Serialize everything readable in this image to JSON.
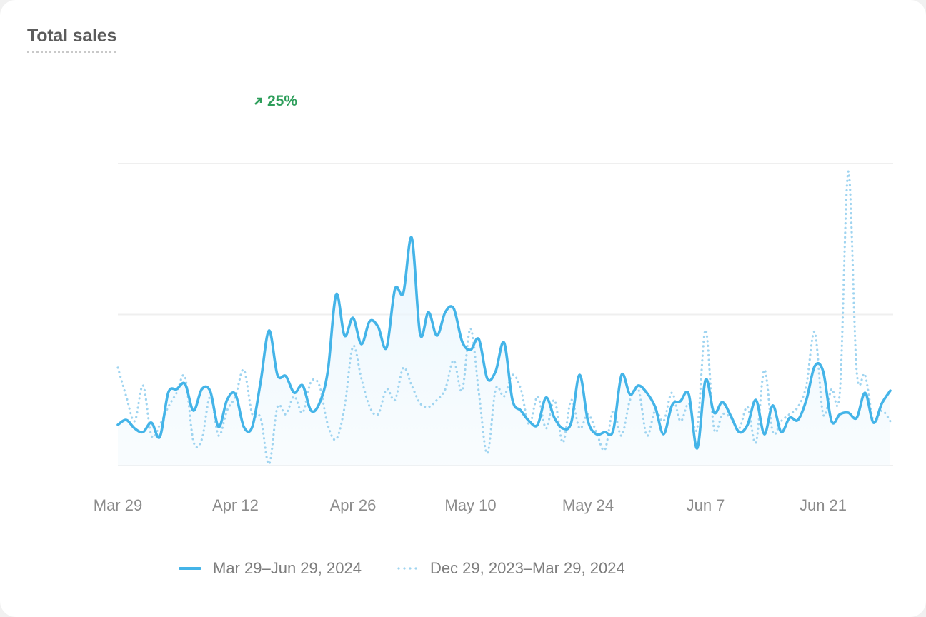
{
  "card": {
    "title": "Total sales",
    "change": {
      "icon": "arrow-up-right-icon",
      "value": "25%",
      "color": "#2e9e5b"
    }
  },
  "colors": {
    "current": "#44b4e8",
    "previous": "#9fd4f0",
    "fill": "#eaf6fd",
    "grid": "#efefef"
  },
  "chart_data": {
    "type": "line",
    "title": "Total sales",
    "xlabel": "",
    "ylabel": "",
    "ylim": [
      0,
      100
    ],
    "grid": true,
    "gridlines": [
      0,
      50,
      100
    ],
    "legend_position": "bottom",
    "start_date": "Mar 29",
    "x_ticks": [
      {
        "day": 0,
        "label": "Mar 29"
      },
      {
        "day": 14,
        "label": "Apr 12"
      },
      {
        "day": 28,
        "label": "Apr 26"
      },
      {
        "day": 42,
        "label": "May 10"
      },
      {
        "day": 56,
        "label": "May 24"
      },
      {
        "day": 70,
        "label": "Jun 7"
      },
      {
        "day": 84,
        "label": "Jun 21"
      }
    ],
    "series": [
      {
        "name": "Mar 29–Jun 29, 2024",
        "style": "solid",
        "values": [
          13.5,
          15.1,
          12.3,
          11.1,
          14.2,
          9.5,
          24.1,
          25.3,
          27.0,
          18.2,
          25.3,
          24.6,
          12.8,
          21.7,
          23.6,
          12.8,
          12.8,
          27.7,
          44.7,
          30.0,
          29.6,
          24.1,
          26.5,
          18.2,
          20.6,
          31.2,
          56.7,
          43.0,
          48.9,
          40.2,
          47.8,
          45.9,
          39.0,
          58.4,
          57.2,
          75.4,
          43.5,
          50.8,
          43.0,
          50.8,
          52.0,
          41.1,
          38.3,
          41.8,
          28.8,
          31.2,
          40.7,
          21.7,
          18.2,
          14.7,
          13.5,
          22.5,
          15.8,
          12.3,
          14.2,
          30.0,
          14.7,
          10.4,
          11.1,
          11.6,
          30.0,
          23.6,
          26.5,
          24.1,
          19.4,
          10.4,
          19.9,
          21.3,
          23.6,
          5.7,
          28.4,
          17.5,
          21.0,
          16.5,
          11.1,
          13.5,
          21.7,
          10.4,
          19.9,
          11.1,
          15.8,
          15.1,
          21.7,
          32.9,
          31.2,
          14.7,
          17.0,
          17.5,
          15.8,
          24.1,
          14.2,
          20.6,
          24.8
        ]
      },
      {
        "name": "Dec 29, 2023–Mar 29, 2024",
        "style": "dotted",
        "values": [
          32.4,
          22.9,
          14.7,
          26.5,
          9.9,
          13.5,
          19.4,
          24.1,
          29.3,
          8.0,
          8.7,
          22.9,
          9.9,
          18.2,
          22.9,
          31.7,
          17.0,
          15.8,
          0.5,
          19.4,
          17.0,
          22.9,
          17.5,
          27.7,
          26.5,
          13.5,
          8.7,
          19.4,
          39.5,
          28.8,
          19.4,
          17.0,
          25.3,
          21.7,
          32.4,
          26.5,
          20.6,
          19.4,
          21.7,
          25.3,
          34.8,
          24.8,
          45.4,
          24.1,
          4.0,
          25.3,
          22.9,
          30.0,
          25.3,
          13.5,
          22.9,
          12.3,
          21.7,
          7.6,
          21.7,
          12.3,
          17.0,
          11.1,
          5.2,
          18.2,
          9.9,
          21.7,
          25.3,
          9.9,
          18.2,
          14.7,
          24.1,
          14.7,
          20.6,
          12.3,
          44.9,
          12.3,
          17.0,
          15.8,
          12.3,
          19.4,
          7.6,
          31.7,
          11.1,
          14.7,
          17.0,
          19.4,
          26.5,
          44.2,
          17.0,
          25.3,
          24.6,
          97.4,
          31.2,
          30.0,
          14.7,
          18.2,
          14.7
        ]
      }
    ]
  }
}
